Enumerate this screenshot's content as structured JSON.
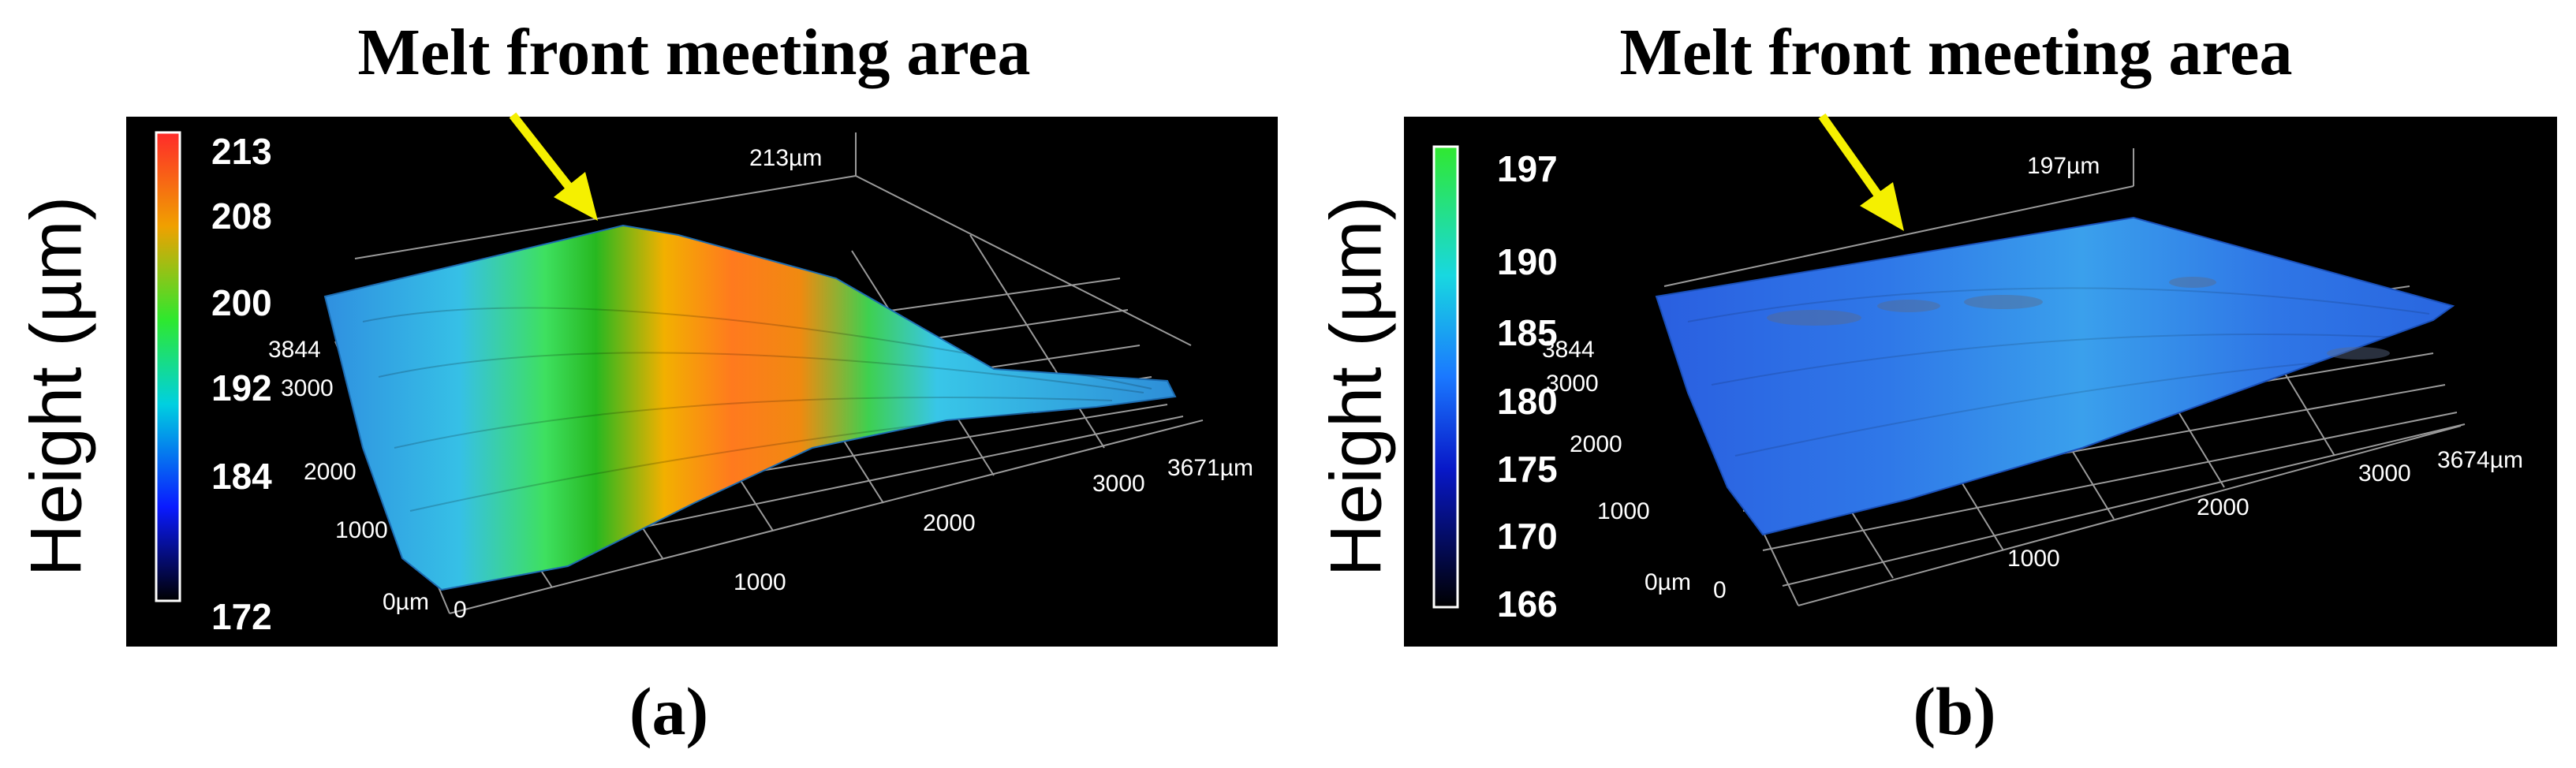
{
  "panels": [
    {
      "id": "a",
      "title": "Melt front meeting area",
      "label": "(a)",
      "ylabel": "Height (µm)",
      "colorbar_ticks": [
        "213",
        "208",
        "200",
        "192",
        "184",
        "172"
      ],
      "z_top_label": "213µm",
      "depth_ticks": [
        "3844",
        "3000",
        "2000",
        "1000",
        "0µm"
      ],
      "width_ticks": [
        "0",
        "1000",
        "2000",
        "3000",
        "3671µm"
      ]
    },
    {
      "id": "b",
      "title": "Melt front meeting area",
      "label": "(b)",
      "ylabel": "Height (µm)",
      "colorbar_ticks": [
        "197",
        "190",
        "185",
        "180",
        "175",
        "170",
        "166"
      ],
      "z_top_label": "197µm",
      "depth_ticks": [
        "3844",
        "3000",
        "2000",
        "1000",
        "0µm"
      ],
      "width_ticks": [
        "0",
        "1000",
        "2000",
        "3000",
        "3674µm"
      ]
    }
  ],
  "colors": {
    "arrow": "#f5f000",
    "background": "#000000"
  }
}
